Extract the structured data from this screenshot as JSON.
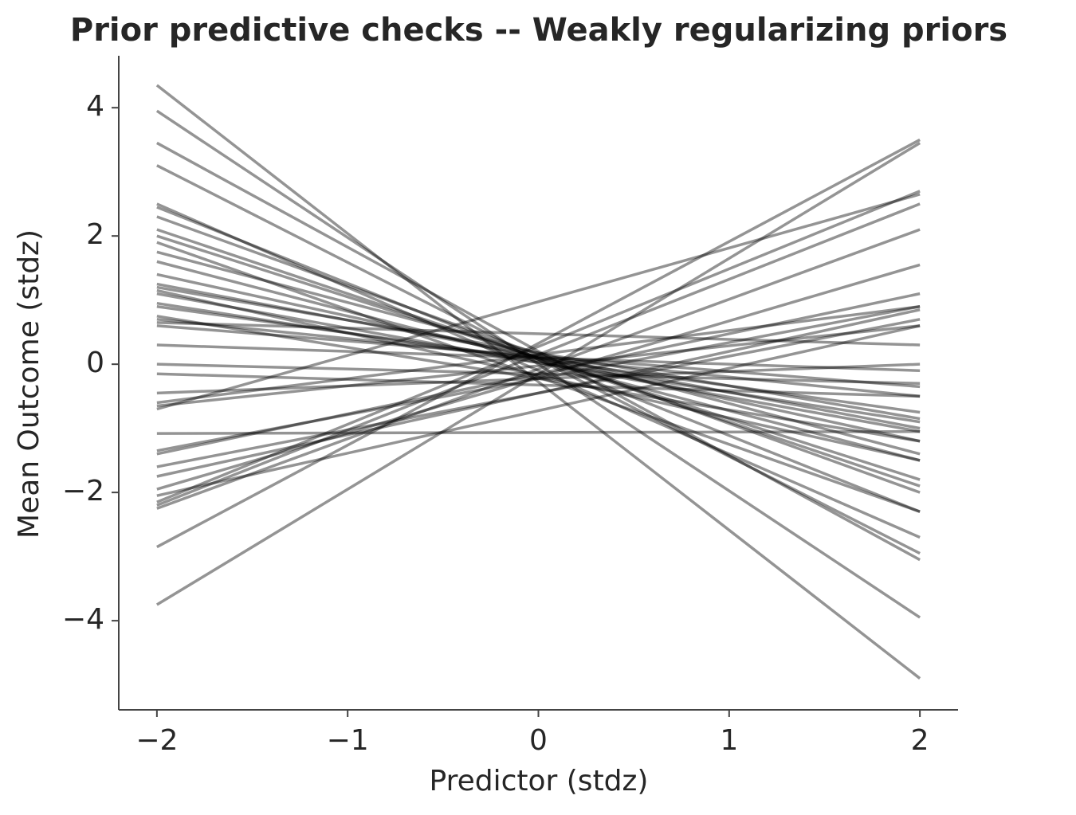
{
  "chart_data": {
    "type": "line",
    "title": "Prior predictive checks -- Weakly regularizing priors",
    "xlabel": "Predictor (stdz)",
    "ylabel": "Mean Outcome (stdz)",
    "x": [
      -2,
      2
    ],
    "xlim": [
      -2.2,
      2.2
    ],
    "ylim": [
      -5.39,
      4.81
    ],
    "xticks": [
      {
        "value": -2,
        "label": "−2"
      },
      {
        "value": -1,
        "label": "−1"
      },
      0,
      1,
      2
    ],
    "yticks": [
      {
        "value": -4,
        "label": "−4"
      },
      {
        "value": -2,
        "label": "−2"
      },
      0,
      2,
      4
    ],
    "color": "#000000",
    "alpha": 0.42,
    "series": [
      {
        "values": [
          4.35,
          -4.9
        ]
      },
      {
        "values": [
          3.95,
          -3.95
        ]
      },
      {
        "values": [
          3.45,
          -3.05
        ]
      },
      {
        "values": [
          3.1,
          -2.95
        ]
      },
      {
        "values": [
          2.5,
          -2.7
        ]
      },
      {
        "values": [
          2.45,
          -2.3
        ]
      },
      {
        "values": [
          2.3,
          -2.0
        ]
      },
      {
        "values": [
          2.1,
          -1.9
        ]
      },
      {
        "values": [
          2.0,
          -1.8
        ]
      },
      {
        "values": [
          1.9,
          -2.3
        ]
      },
      {
        "values": [
          1.75,
          -1.4
        ]
      },
      {
        "values": [
          1.6,
          -1.5
        ]
      },
      {
        "values": [
          1.4,
          -1.2
        ]
      },
      {
        "values": [
          1.25,
          -1.0
        ]
      },
      {
        "values": [
          1.2,
          -0.85
        ]
      },
      {
        "values": [
          1.15,
          -1.5
        ]
      },
      {
        "values": [
          1.1,
          -1.05
        ]
      },
      {
        "values": [
          0.95,
          -0.9
        ]
      },
      {
        "values": [
          0.9,
          -0.75
        ]
      },
      {
        "values": [
          0.75,
          -1.2
        ]
      },
      {
        "values": [
          0.7,
          -0.5
        ]
      },
      {
        "values": [
          0.65,
          0.3
        ]
      },
      {
        "values": [
          0.6,
          -0.35
        ]
      },
      {
        "values": [
          0.3,
          -0.1
        ]
      },
      {
        "values": [
          0.0,
          -0.3
        ]
      },
      {
        "values": [
          -0.15,
          -0.5
        ]
      },
      {
        "values": [
          -0.45,
          0.0
        ]
      },
      {
        "values": [
          -0.6,
          0.9
        ]
      },
      {
        "values": [
          -0.65,
          0.6
        ]
      },
      {
        "values": [
          -1.08,
          -1.05
        ]
      },
      {
        "values": [
          -1.35,
          0.9
        ]
      },
      {
        "values": [
          -1.4,
          1.1
        ]
      },
      {
        "values": [
          -1.6,
          0.7
        ]
      },
      {
        "values": [
          -1.75,
          0.85
        ]
      },
      {
        "values": [
          -1.95,
          1.55
        ]
      },
      {
        "values": [
          -2.05,
          0.6
        ]
      },
      {
        "values": [
          -2.2,
          2.5
        ]
      },
      {
        "values": [
          -2.25,
          2.1
        ]
      },
      {
        "values": [
          -2.85,
          3.5
        ]
      },
      {
        "values": [
          -3.75,
          3.45
        ]
      },
      {
        "values": [
          -0.7,
          2.65
        ]
      },
      {
        "values": [
          -2.15,
          2.7
        ]
      }
    ]
  }
}
